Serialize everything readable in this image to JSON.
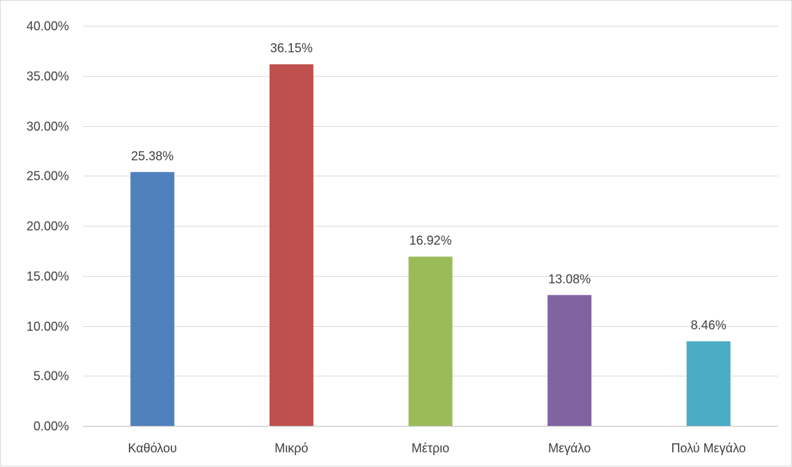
{
  "chart_data": {
    "type": "bar",
    "categories": [
      "Καθόλου",
      "Μικρό",
      "Μέτριο",
      "Μεγάλο",
      "Πολύ Μεγάλο"
    ],
    "values": [
      25.38,
      36.15,
      16.92,
      13.08,
      8.46
    ],
    "data_labels": [
      "25.38%",
      "36.15%",
      "16.92%",
      "13.08%",
      "8.46%"
    ],
    "colors": [
      "#4f81bd",
      "#c0504d",
      "#9bbb59",
      "#8064a2",
      "#4bacc6"
    ],
    "title": "",
    "xlabel": "",
    "ylabel": "",
    "ylim": [
      0,
      40
    ],
    "ytick_step": 5,
    "ytick_labels": [
      "0.00%",
      "5.00%",
      "10.00%",
      "15.00%",
      "20.00%",
      "25.00%",
      "30.00%",
      "35.00%",
      "40.00%"
    ],
    "grid": true,
    "legend": "none"
  }
}
